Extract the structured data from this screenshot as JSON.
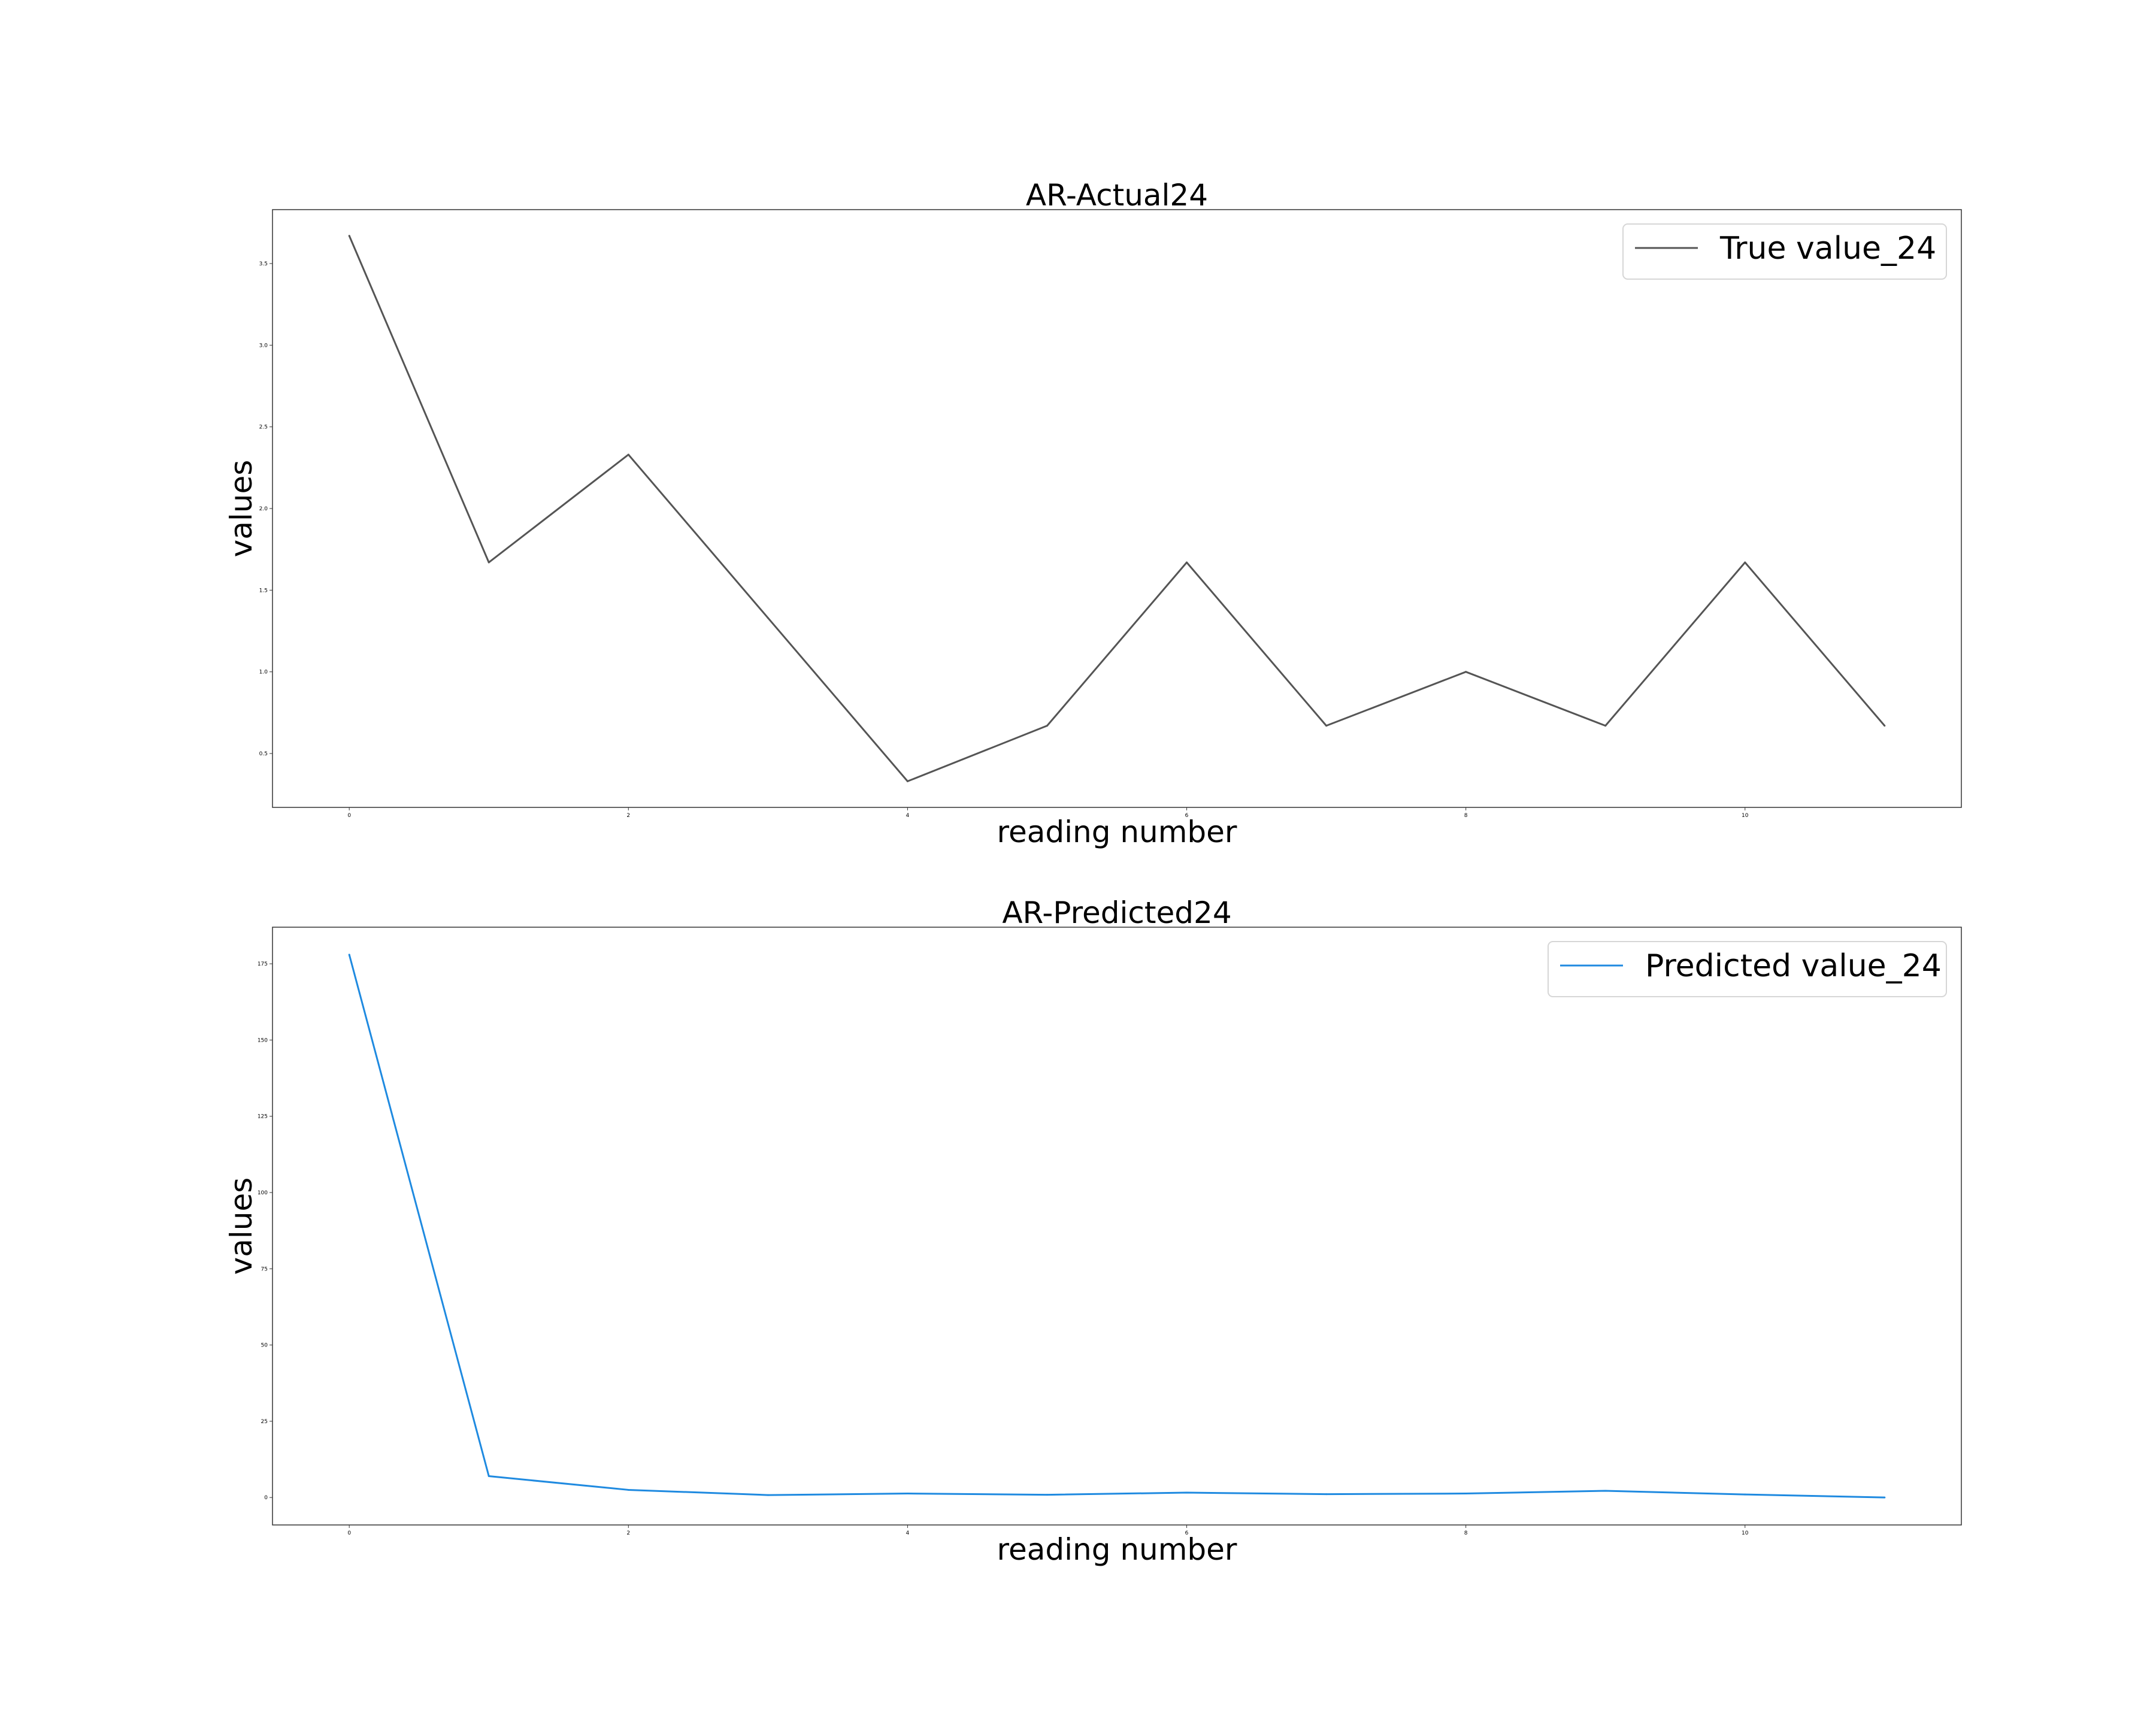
{
  "chart_data": [
    {
      "type": "line",
      "title": "AR-Actual24",
      "xlabel": "reading number",
      "ylabel": "values",
      "x": [
        0,
        1,
        2,
        3,
        4,
        5,
        6,
        7,
        8,
        9,
        10,
        11
      ],
      "series": [
        {
          "name": "True value_24",
          "color": "#555555",
          "values": [
            3.67,
            1.67,
            2.33,
            1.33,
            0.33,
            0.67,
            1.67,
            0.67,
            1.0,
            0.67,
            1.67,
            0.67
          ]
        }
      ],
      "xlim": [
        -0.55,
        11.55
      ],
      "ylim": [
        0.17,
        3.83
      ],
      "xticks": [
        0,
        2,
        4,
        6,
        8,
        10
      ],
      "xtick_labels": [
        "0",
        "2",
        "4",
        "6",
        "8",
        "10"
      ],
      "yticks": [
        0.5,
        1.0,
        1.5,
        2.0,
        2.5,
        3.0,
        3.5
      ],
      "ytick_labels": [
        "0.5",
        "1.0",
        "1.5",
        "2.0",
        "2.5",
        "3.0",
        "3.5"
      ],
      "grid": false,
      "legend": "top-right"
    },
    {
      "type": "line",
      "title": "AR-Predicted24",
      "xlabel": "reading number",
      "ylabel": "values",
      "x": [
        0,
        1,
        2,
        3,
        4,
        5,
        6,
        7,
        8,
        9,
        10,
        11
      ],
      "series": [
        {
          "name": "Predicted value_24",
          "color": "#1f8ae0",
          "values": [
            178,
            7,
            2.5,
            0.8,
            1.3,
            0.9,
            1.6,
            1.1,
            1.3,
            2.2,
            1.0,
            0
          ]
        }
      ],
      "xlim": [
        -0.55,
        11.55
      ],
      "ylim": [
        -9,
        187
      ],
      "xticks": [
        0,
        2,
        4,
        6,
        8,
        10
      ],
      "xtick_labels": [
        "0",
        "2",
        "4",
        "6",
        "8",
        "10"
      ],
      "yticks": [
        0,
        25,
        50,
        75,
        100,
        125,
        150,
        175
      ],
      "ytick_labels": [
        "0",
        "25",
        "50",
        "75",
        "100",
        "125",
        "150",
        "175"
      ],
      "grid": false,
      "legend": "top-right"
    }
  ]
}
